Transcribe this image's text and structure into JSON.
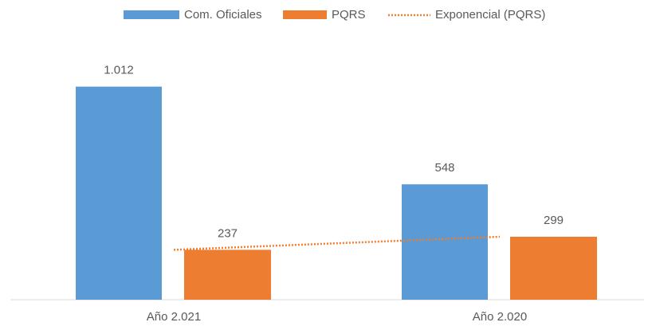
{
  "chart_data": {
    "type": "bar",
    "categories": [
      "Año 2.021",
      "Año 2.020"
    ],
    "series": [
      {
        "name": "Com. Oficiales",
        "color": "#5b9bd5",
        "values": [
          1012,
          548
        ],
        "value_labels": [
          "1.012",
          "548"
        ]
      },
      {
        "name": "PQRS",
        "color": "#ed7d31",
        "values": [
          237,
          299
        ]
      },
      {
        "name": "Exponencial (PQRS)",
        "color": "#ed7d31",
        "type": "trendline",
        "values": [
          237,
          299
        ]
      }
    ],
    "ylim": [
      0,
      1200
    ],
    "grid": false,
    "legend": "top"
  }
}
